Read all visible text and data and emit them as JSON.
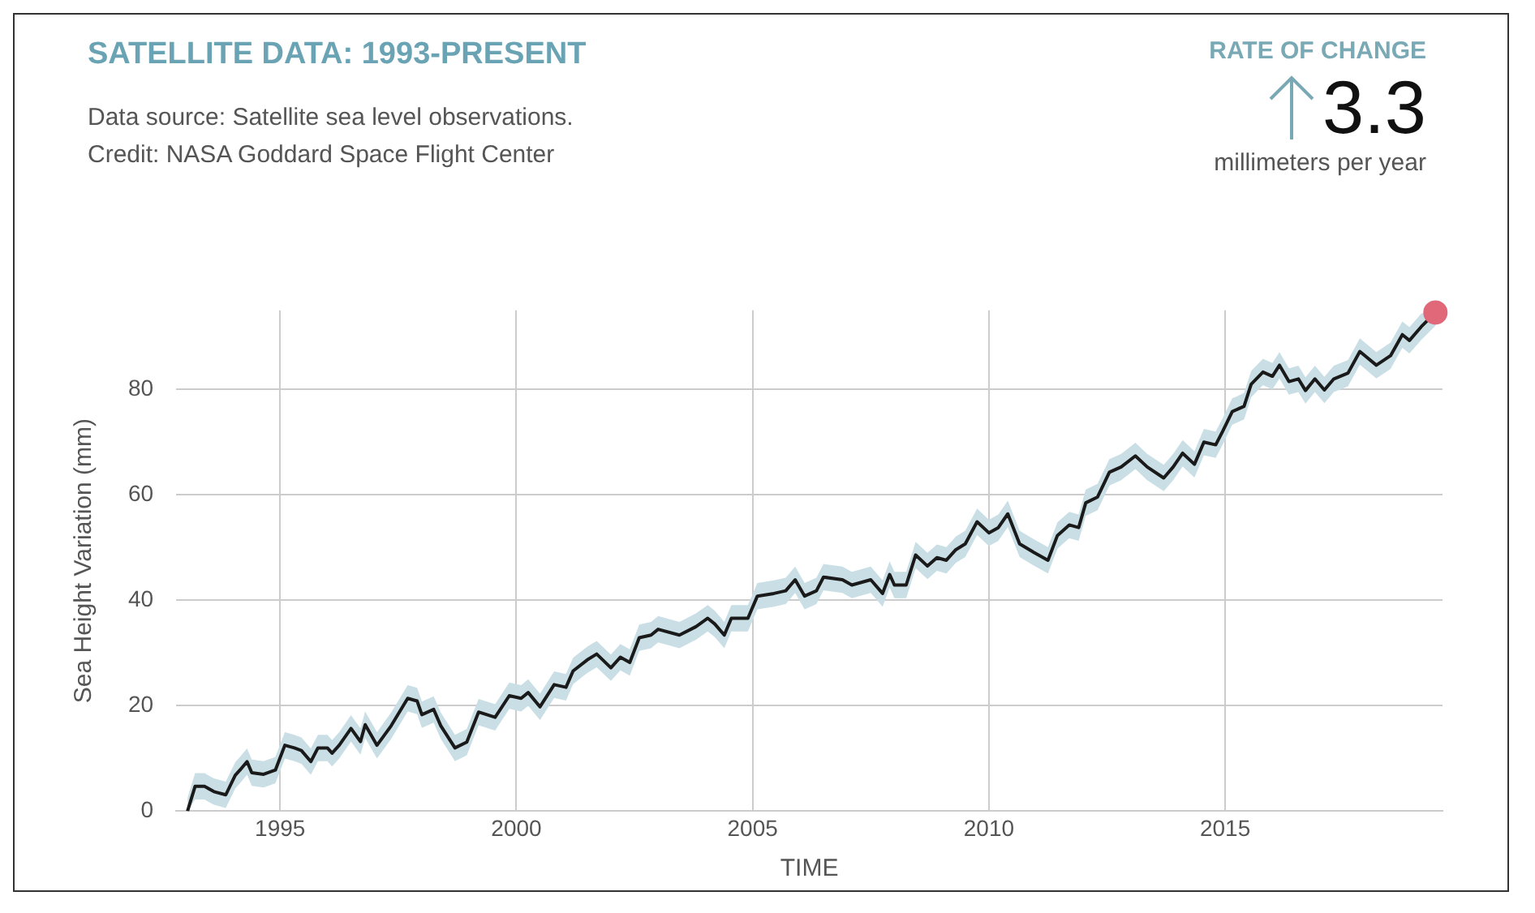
{
  "chart_data": {
    "type": "line",
    "title": "SATELLITE DATA: 1993-PRESENT",
    "subtitle": "Data source: Satellite sea level observations.",
    "annotations": [
      "Credit: NASA Goddard Space Flight Center",
      "RATE OF CHANGE",
      "3.3",
      "millimeters per year"
    ],
    "xlabel": "TIME",
    "ylabel": "Sea Height Variation (mm)",
    "xlim": [
      1992.8,
      2019.6
    ],
    "xticks": [
      1995,
      2000,
      2005,
      2010,
      2015
    ],
    "ylim": [
      0,
      95
    ],
    "yticks": [
      0,
      20,
      40,
      60,
      80
    ],
    "grid": true,
    "legend": false,
    "marker": "none",
    "line_style": "solid",
    "series": [
      {
        "color": "#1a1a1a",
        "x": [
          1993.04,
          1993.2,
          1993.4,
          1993.6,
          1993.85,
          1994.05,
          1994.15,
          1994.3,
          1994.4,
          1994.65,
          1994.9,
          1995.1,
          1995.3,
          1995.45,
          1995.65,
          1995.8,
          1996.0,
          1996.1,
          1996.25,
          1996.5,
          1996.7,
          1996.8,
          1997.05,
          1997.35,
          1997.7,
          1997.9,
          1998.0,
          1998.25,
          1998.4,
          1998.7,
          1998.95,
          1999.2,
          1999.55,
          1999.85,
          2000.1,
          2000.25,
          2000.5,
          2000.8,
          2001.05,
          2001.2,
          2001.5,
          2001.7,
          2002.0,
          2002.2,
          2002.4,
          2002.6,
          2002.85,
          2003.0,
          2003.45,
          2003.8,
          2004.05,
          2004.2,
          2004.4,
          2004.55,
          2004.9,
          2005.1,
          2005.45,
          2005.7,
          2005.9,
          2006.1,
          2006.35,
          2006.5,
          2006.9,
          2007.1,
          2007.5,
          2007.75,
          2007.9,
          2008.0,
          2008.25,
          2008.45,
          2008.7,
          2008.9,
          2009.1,
          2009.3,
          2009.5,
          2009.75,
          2010.0,
          2010.2,
          2010.4,
          2010.65,
          2010.95,
          2011.25,
          2011.45,
          2011.7,
          2011.9,
          2012.05,
          2012.3,
          2012.55,
          2012.8,
          2013.1,
          2013.35,
          2013.7,
          2013.9,
          2014.1,
          2014.35,
          2014.55,
          2014.8,
          2014.95,
          2015.15,
          2015.4,
          2015.55,
          2015.8,
          2016.0,
          2016.15,
          2016.35,
          2016.55,
          2016.7,
          2016.9,
          2017.1,
          2017.3,
          2017.6,
          2017.85,
          2018.2,
          2018.5,
          2018.75,
          2018.9,
          2019.15,
          2019.45
        ],
        "values": [
          0,
          4.7,
          4.7,
          3.7,
          3.1,
          6.8,
          7.8,
          9.4,
          7.3,
          7,
          7.8,
          12.5,
          12,
          11.5,
          9.4,
          12,
          12,
          11,
          12.5,
          15.7,
          13.2,
          16.4,
          12.5,
          16.2,
          21.4,
          20.9,
          18.3,
          19.3,
          16.2,
          12,
          13.1,
          18.8,
          17.8,
          21.9,
          21.4,
          22.5,
          19.8,
          24,
          23.5,
          26.6,
          28.7,
          29.8,
          27.2,
          29.2,
          28.2,
          32.9,
          33.4,
          34.5,
          33.4,
          35,
          36.6,
          35.5,
          33.4,
          36.6,
          36.6,
          40.8,
          41.3,
          41.8,
          43.9,
          40.8,
          41.8,
          44.4,
          43.9,
          42.9,
          43.9,
          41.3,
          44.9,
          42.9,
          42.9,
          48.6,
          46.5,
          48.1,
          47.6,
          49.6,
          50.7,
          54.9,
          52.8,
          53.8,
          56.4,
          50.7,
          49.1,
          47.6,
          52.3,
          54.3,
          53.8,
          58.5,
          59.6,
          64.3,
          65.3,
          67.4,
          65.3,
          63.2,
          65.3,
          67.9,
          65.8,
          70,
          69.5,
          72.1,
          75.8,
          76.8,
          81,
          83.3,
          82.5,
          84.6,
          81.5,
          82,
          79.8,
          82,
          79.9,
          82,
          83.1,
          87.2,
          84.6,
          86.4,
          90.4,
          89.3,
          91.9,
          94.6
        ],
        "lower": [
          0,
          2.2,
          2.2,
          1.2,
          0.6,
          4.3,
          5.3,
          6.9,
          4.8,
          4.5,
          5.3,
          10,
          9.5,
          9,
          6.9,
          9.5,
          9.5,
          8.5,
          10,
          13.2,
          10.7,
          13.9,
          10,
          13.7,
          18.9,
          18.4,
          15.8,
          16.8,
          13.7,
          9.5,
          10.6,
          16.3,
          15.3,
          19.4,
          18.9,
          20,
          17.3,
          21.5,
          21,
          24.1,
          26.2,
          27.3,
          24.7,
          26.7,
          25.7,
          30.4,
          30.9,
          32,
          30.9,
          32.5,
          34.1,
          33,
          30.9,
          34.1,
          34.1,
          38.3,
          38.8,
          39.3,
          41.4,
          38.3,
          39.3,
          41.9,
          41.4,
          40.4,
          41.4,
          38.8,
          42.4,
          40.4,
          40.4,
          46.1,
          44,
          45.6,
          45.1,
          47.1,
          48.2,
          52.4,
          50.3,
          51.3,
          53.9,
          48.2,
          46.6,
          45.1,
          49.8,
          51.8,
          51.3,
          56,
          57.1,
          61.8,
          62.8,
          64.9,
          62.8,
          60.7,
          62.8,
          65.4,
          63.3,
          67.5,
          67,
          69.6,
          73.3,
          74.3,
          78.5,
          80.8,
          80,
          82.1,
          79,
          79.5,
          77.3,
          79.5,
          77.4,
          79.5,
          80.6,
          84.7,
          82.1,
          83.9,
          87.9,
          86.8,
          89.4,
          92.1
        ],
        "upper": [
          2.5,
          7.2,
          7.2,
          6.2,
          5.6,
          9.3,
          10.3,
          11.9,
          9.8,
          9.5,
          10.3,
          15,
          14.5,
          14,
          11.9,
          14.5,
          14.5,
          13.5,
          15,
          18.2,
          15.7,
          18.9,
          15,
          18.7,
          23.9,
          23.4,
          20.8,
          21.8,
          18.7,
          14.5,
          15.6,
          21.3,
          20.3,
          24.4,
          23.9,
          25,
          22.3,
          26.5,
          26,
          29.1,
          31.2,
          32.3,
          29.7,
          31.7,
          30.7,
          35.4,
          35.9,
          37,
          35.9,
          37.5,
          39.1,
          38,
          35.9,
          39.1,
          39.1,
          43.3,
          43.8,
          44.3,
          46.4,
          43.3,
          44.3,
          46.9,
          46.4,
          45.4,
          46.4,
          43.8,
          47.4,
          45.4,
          45.4,
          51.1,
          49,
          50.6,
          50.1,
          52.1,
          53.2,
          57.4,
          55.3,
          56.3,
          58.9,
          53.2,
          51.6,
          50.1,
          54.8,
          56.8,
          56.3,
          61,
          62.1,
          66.8,
          67.8,
          69.9,
          67.8,
          65.7,
          67.8,
          70.4,
          68.3,
          72.5,
          72,
          74.6,
          78.3,
          79.3,
          83.5,
          85.8,
          85,
          87.1,
          84,
          84.5,
          82.3,
          84.5,
          82.4,
          84.5,
          85.6,
          89.7,
          87.1,
          88.9,
          92.9,
          91.8,
          94.4,
          95
        ]
      },
      {
        "type": "scatter",
        "color": "#e06878",
        "x": [
          2019.45
        ],
        "values": [
          94.6
        ],
        "marker": "circle"
      }
    ]
  }
}
